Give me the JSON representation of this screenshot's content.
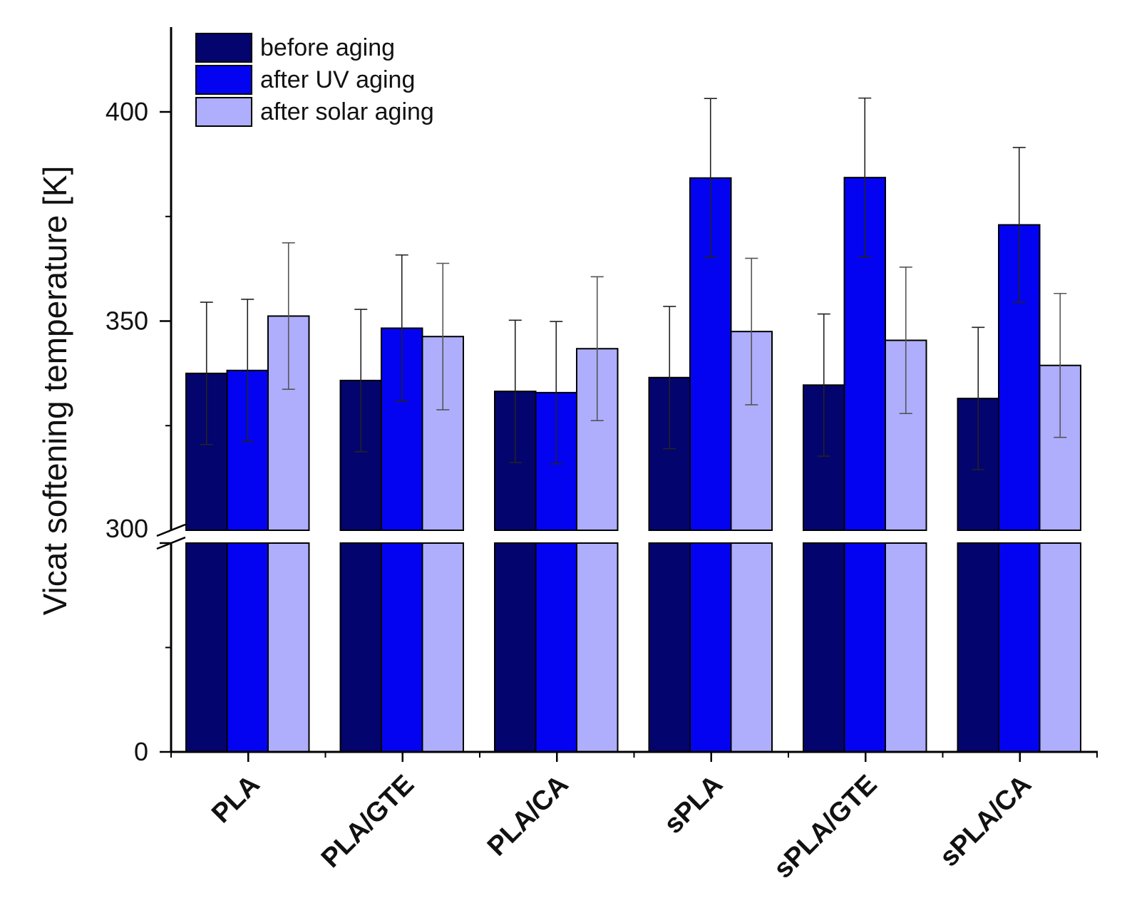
{
  "chart_data": {
    "type": "bar",
    "title": "",
    "xlabel": "",
    "ylabel": "Vicat softening temperature [K]",
    "categories": [
      "PLA",
      "PLA/GTE",
      "PLA/CA",
      "sPLA",
      "sPLA/GTE",
      "sPLA/CA"
    ],
    "series": [
      {
        "name": "before aging",
        "color": "#04046e",
        "values": [
          337.5,
          335.8,
          333.2,
          336.5,
          334.7,
          331.5
        ],
        "errors": [
          17,
          17,
          17,
          17,
          17,
          17
        ]
      },
      {
        "name": "after UV aging",
        "color": "#0303f2",
        "values": [
          338.2,
          348.3,
          332.9,
          384.2,
          384.3,
          373.0
        ],
        "errors": [
          17,
          17.5,
          17,
          19,
          19,
          18.5
        ]
      },
      {
        "name": "after solar aging",
        "color": "#aeaefc",
        "values": [
          351.2,
          346.3,
          343.4,
          347.5,
          345.4,
          339.4
        ],
        "errors": [
          17.5,
          17.5,
          17.2,
          17.5,
          17.5,
          17.2
        ]
      }
    ],
    "y_axis": {
      "broken": true,
      "lower_segment": [
        0,
        300
      ],
      "upper_segment": [
        300,
        420
      ],
      "labeled_ticks": [
        "0",
        "300",
        "350",
        "400"
      ]
    },
    "legend_position": "top-left",
    "grid": false
  }
}
